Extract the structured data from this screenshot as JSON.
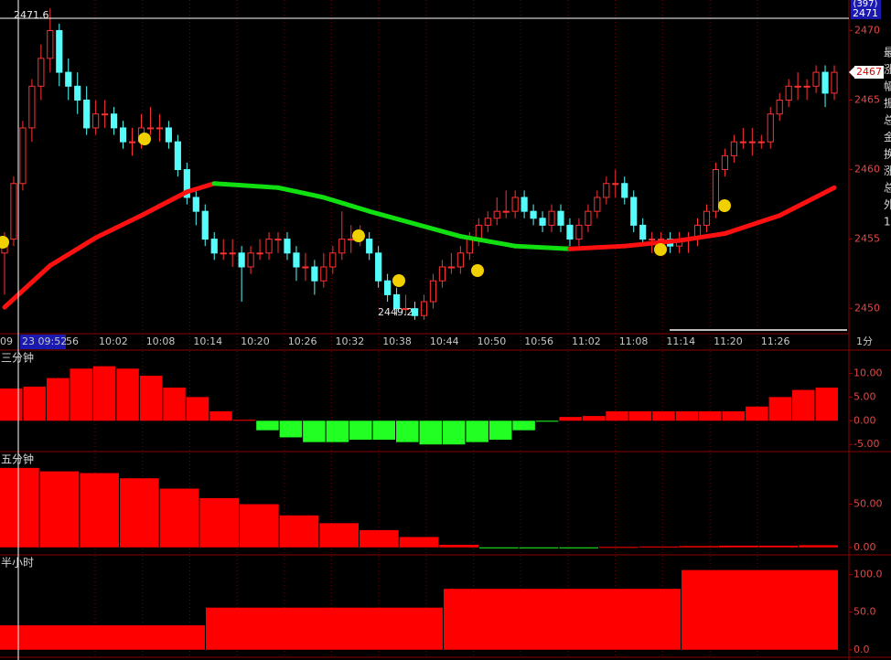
{
  "chart_data": [
    {
      "type": "candlestick",
      "ylim": [
        2448.2,
        2472.2
      ],
      "yticks": [
        2450,
        2455,
        2460,
        2465,
        2470
      ],
      "up_color": "#ff3232",
      "down_color": "#54fcfc",
      "candles": [
        [
          2454,
          2455.5,
          2451,
          2455
        ],
        [
          2455,
          2459.5,
          2454.5,
          2459
        ],
        [
          2459,
          2463.5,
          2458.5,
          2463
        ],
        [
          2463,
          2466.5,
          2462,
          2466
        ],
        [
          2466,
          2469,
          2465,
          2468
        ],
        [
          2468,
          2471.6,
          2467,
          2470
        ],
        [
          2470,
          2470.5,
          2466,
          2467
        ],
        [
          2467,
          2468,
          2465,
          2466
        ],
        [
          2466,
          2467,
          2464,
          2465
        ],
        [
          2465,
          2466,
          2462.5,
          2463
        ],
        [
          2463,
          2465,
          2462.5,
          2464
        ],
        [
          2464,
          2465,
          2463,
          2464
        ],
        [
          2464,
          2464.5,
          2462.5,
          2463
        ],
        [
          2463,
          2463.5,
          2461.5,
          2462
        ],
        [
          2462,
          2463,
          2461,
          2462
        ],
        [
          2462,
          2464,
          2461.5,
          2463
        ],
        [
          2463,
          2464.5,
          2462.5,
          2463
        ],
        [
          2463,
          2464,
          2462,
          2463
        ],
        [
          2463,
          2463.5,
          2461.5,
          2462
        ],
        [
          2462,
          2462.5,
          2459.5,
          2460
        ],
        [
          2460,
          2460.5,
          2457.5,
          2458
        ],
        [
          2458,
          2458.5,
          2456,
          2457
        ],
        [
          2457,
          2457.5,
          2454.5,
          2455
        ],
        [
          2455,
          2455.5,
          2453.5,
          2454
        ],
        [
          2454,
          2455,
          2453.5,
          2454
        ],
        [
          2454,
          2455,
          2453,
          2454
        ],
        [
          2454,
          2454.5,
          2450.5,
          2453
        ],
        [
          2453,
          2454.5,
          2452.5,
          2454
        ],
        [
          2454,
          2455,
          2453.5,
          2454
        ],
        [
          2454,
          2455.5,
          2453.5,
          2455
        ],
        [
          2455,
          2455.5,
          2454,
          2455
        ],
        [
          2455,
          2455.5,
          2453.5,
          2454
        ],
        [
          2454,
          2454.5,
          2452,
          2453
        ],
        [
          2453,
          2454,
          2452,
          2453
        ],
        [
          2453,
          2453.5,
          2451,
          2452
        ],
        [
          2452,
          2454,
          2451.5,
          2453
        ],
        [
          2453,
          2454.5,
          2452.5,
          2454
        ],
        [
          2454,
          2457,
          2453.5,
          2455
        ],
        [
          2455,
          2456,
          2454,
          2455
        ],
        [
          2455,
          2456,
          2454.5,
          2455
        ],
        [
          2455,
          2455.5,
          2453.5,
          2454
        ],
        [
          2454,
          2454.5,
          2451.5,
          2452
        ],
        [
          2452,
          2452.5,
          2450.5,
          2451
        ],
        [
          2451,
          2451.5,
          2449.5,
          2450
        ],
        [
          2450,
          2451,
          2449.5,
          2450
        ],
        [
          2450,
          2450.5,
          2449.2,
          2449.5
        ],
        [
          2449.5,
          2451,
          2449.2,
          2450.5
        ],
        [
          2450.5,
          2452.5,
          2450,
          2452
        ],
        [
          2452,
          2453.5,
          2451.5,
          2453
        ],
        [
          2453,
          2454,
          2452.5,
          2453
        ],
        [
          2453,
          2454.5,
          2452.5,
          2454
        ],
        [
          2454,
          2455.5,
          2453.5,
          2455
        ],
        [
          2455,
          2456.5,
          2454.5,
          2456
        ],
        [
          2456,
          2457,
          2455.5,
          2456.5
        ],
        [
          2456.5,
          2458,
          2456,
          2457
        ],
        [
          2457,
          2458.5,
          2456.5,
          2457
        ],
        [
          2457,
          2458.5,
          2456.5,
          2458
        ],
        [
          2458,
          2458.5,
          2456.5,
          2457
        ],
        [
          2457,
          2457.5,
          2456,
          2456.5
        ],
        [
          2456.5,
          2457,
          2455.5,
          2456
        ],
        [
          2456,
          2457.5,
          2455.5,
          2457
        ],
        [
          2457,
          2457.5,
          2455.5,
          2456
        ],
        [
          2456,
          2456.5,
          2454.5,
          2455
        ],
        [
          2455,
          2456.5,
          2454.5,
          2456
        ],
        [
          2456,
          2457.5,
          2455.5,
          2457
        ],
        [
          2457,
          2458.5,
          2456.5,
          2458
        ],
        [
          2458,
          2459.5,
          2457.5,
          2459
        ],
        [
          2459,
          2460,
          2458,
          2459
        ],
        [
          2459,
          2459.5,
          2457.5,
          2458
        ],
        [
          2458,
          2458.5,
          2455.5,
          2456
        ],
        [
          2456,
          2456.5,
          2454.5,
          2455
        ],
        [
          2455,
          2455.5,
          2454,
          2455
        ],
        [
          2455,
          2455.5,
          2454,
          2455
        ],
        [
          2455,
          2455.5,
          2454,
          2454.5
        ],
        [
          2454.5,
          2455.5,
          2454,
          2455
        ],
        [
          2455,
          2455.5,
          2454,
          2455
        ],
        [
          2455,
          2456.5,
          2454.5,
          2456
        ],
        [
          2456,
          2457.5,
          2455.5,
          2457
        ],
        [
          2457,
          2460.5,
          2456.5,
          2460
        ],
        [
          2460,
          2461.5,
          2459.5,
          2461
        ],
        [
          2461,
          2462.5,
          2460.5,
          2462
        ],
        [
          2462,
          2463,
          2461.5,
          2462
        ],
        [
          2462,
          2463,
          2461,
          2462
        ],
        [
          2462,
          2462.5,
          2461.5,
          2462
        ],
        [
          2462,
          2464.5,
          2461.5,
          2464
        ],
        [
          2464,
          2465.5,
          2463.5,
          2465
        ],
        [
          2465,
          2466.5,
          2464.5,
          2466
        ],
        [
          2466,
          2467,
          2465,
          2466
        ],
        [
          2466,
          2466.5,
          2465,
          2466
        ],
        [
          2466,
          2467.5,
          2465.5,
          2467
        ],
        [
          2467,
          2467.5,
          2464.5,
          2465.5
        ],
        [
          2465.5,
          2467.5,
          2465,
          2467
        ]
      ],
      "ma": {
        "x": [
          0,
          5,
          10,
          15,
          20,
          23,
          30,
          35,
          40,
          45,
          50,
          56,
          62,
          68,
          74,
          79,
          85,
          91
        ],
        "values": [
          2450.1,
          2453.1,
          2455.1,
          2456.7,
          2458.4,
          2459.0,
          2458.7,
          2458.0,
          2457.0,
          2456.1,
          2455.2,
          2454.5,
          2454.3,
          2454.5,
          2454.9,
          2455.4,
          2456.7,
          2458.7
        ],
        "rise_color": "#ff1010",
        "fall_color": "#10e010"
      },
      "annotations": [
        "2471.6",
        "2449.2"
      ],
      "badges": [
        "(397)",
        "2471",
        "2467"
      ],
      "time_labels": [
        "09",
        "23 09:52",
        "56",
        "10:02",
        "10:08",
        "10:14",
        "10:20",
        "10:26",
        "10:32",
        "10:38",
        "10:44",
        "10:50",
        "10:56",
        "11:02",
        "11:08",
        "11:14",
        "11:20",
        "11:26",
        "1分"
      ],
      "side_labels": [
        "最",
        "涨",
        "幅",
        "振",
        "总",
        "金",
        "换",
        "涨",
        "总",
        "外",
        "1"
      ]
    },
    {
      "type": "bar",
      "title": "三分钟",
      "values": [
        6.8,
        7.2,
        9,
        11,
        11.5,
        11,
        9.5,
        7,
        5,
        2,
        0.2,
        -2,
        -3.5,
        -4.5,
        -4.5,
        -4,
        -4,
        -4.5,
        -5,
        -5,
        -4.5,
        -4,
        -2,
        -0.2,
        0.8,
        1,
        2,
        2,
        2,
        2,
        2,
        2,
        3,
        5,
        6.5,
        7
      ],
      "ylim": [
        -6.5,
        14.9
      ],
      "yticks": [
        {
          "value": 10,
          "label": "10.00"
        },
        {
          "value": 5,
          "label": "5.00"
        },
        {
          "value": 0,
          "label": "0.00"
        },
        {
          "value": -5,
          "label": "-5.00"
        }
      ],
      "pos_color": "#ff0000",
      "neg_color": "#22ff22"
    },
    {
      "type": "bar",
      "title": "五分钟",
      "values": [
        92,
        88,
        86,
        80,
        68,
        57,
        50,
        37,
        28,
        20,
        12,
        3,
        -0.5,
        -0.5,
        -0.3,
        0.5,
        1,
        1.5,
        2,
        2,
        2.5
      ],
      "ylim": [
        -8.7,
        110.9
      ],
      "yticks": [
        {
          "value": 50,
          "label": "50.00"
        },
        {
          "value": 0,
          "label": "0.00"
        }
      ],
      "pos_color": "#ff0000",
      "neg_color": "#22ff22"
    },
    {
      "type": "bar",
      "title": "半小时",
      "values": [
        32.5,
        56,
        81,
        106
      ],
      "ylim": [
        -10,
        126.2
      ],
      "yticks": [
        {
          "value": 100,
          "label": "100.0"
        },
        {
          "value": 50,
          "label": "50.0"
        },
        {
          "value": 0,
          "label": "0.0"
        }
      ],
      "pos_color": "#ff0000",
      "neg_color": "#22ff22"
    }
  ]
}
